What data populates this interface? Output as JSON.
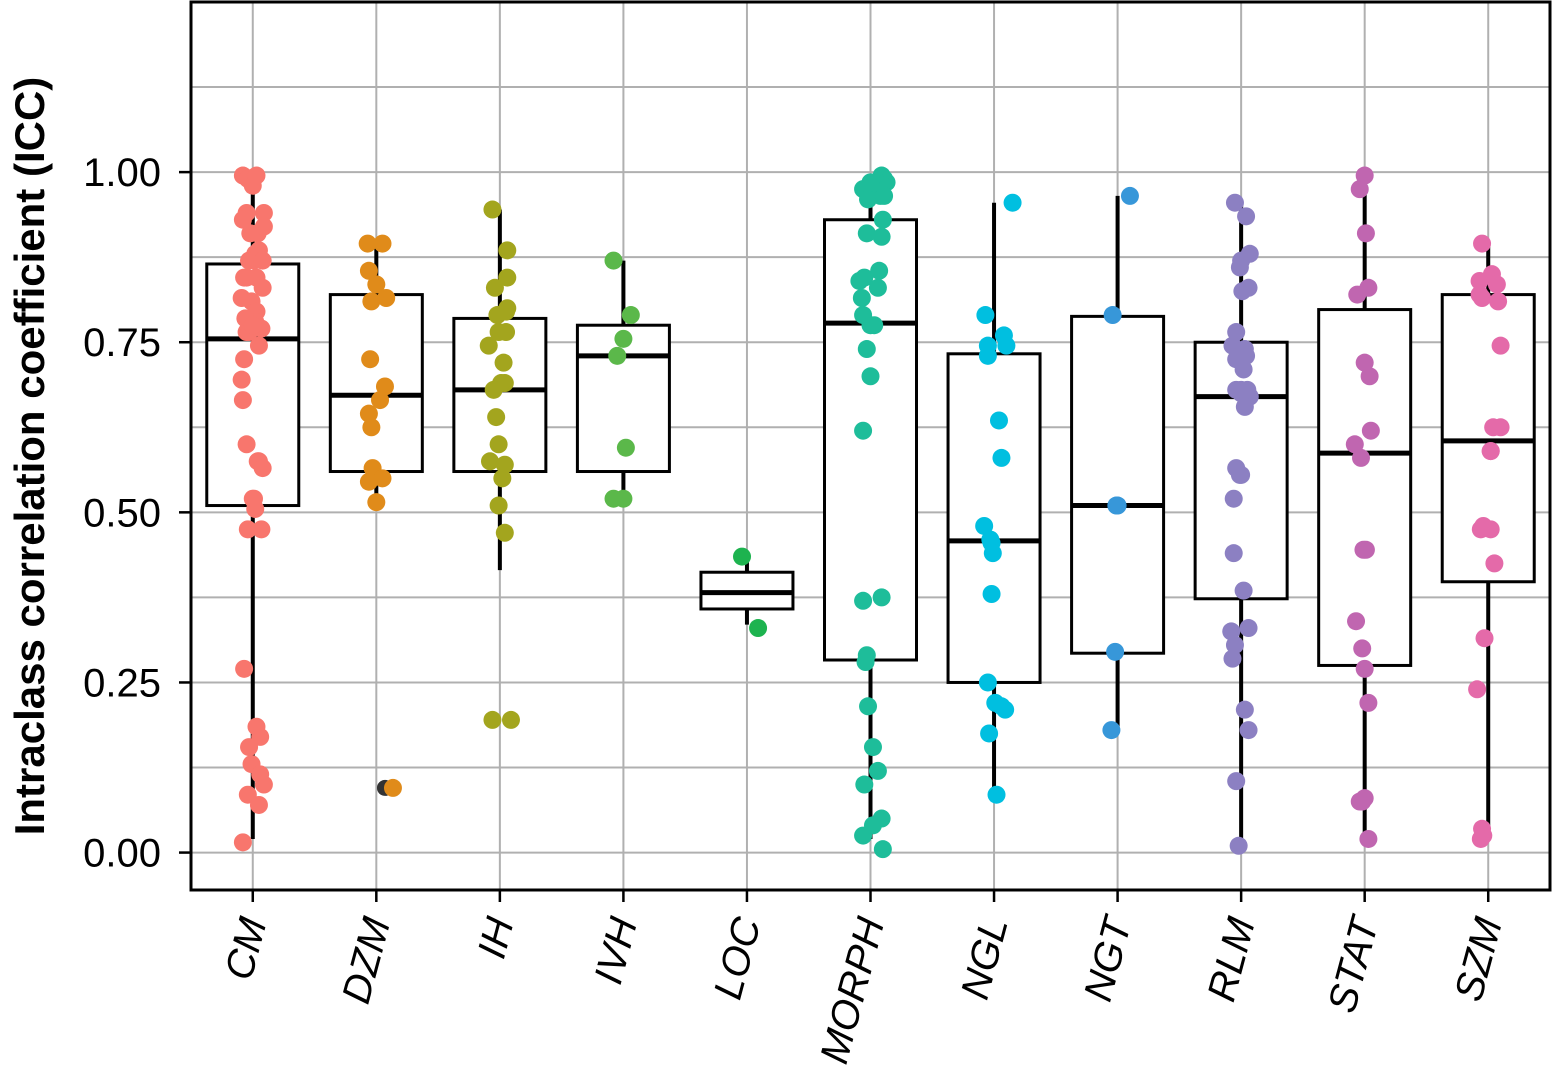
{
  "chart_data": {
    "type": "box",
    "title": "",
    "xlabel": "",
    "ylabel": "Intraclass correlation coefficient (ICC)",
    "ylim": [
      -0.055,
      1.25
    ],
    "yticks": [
      0.0,
      0.25,
      0.5,
      0.75,
      1.0
    ],
    "ytick_labels": [
      "0.00",
      "0.25",
      "0.50",
      "0.75",
      "1.00"
    ],
    "grid": true,
    "categories": [
      "CM",
      "DZM",
      "IH",
      "IVH",
      "LOC",
      "MORPH",
      "NGL",
      "NGT",
      "RLM",
      "STAT",
      "SZM"
    ],
    "colors": [
      "#f8766d",
      "#e08b1a",
      "#a3a51e",
      "#5bb84a",
      "#1db34f",
      "#1ebd9a",
      "#00bfe0",
      "#3797d9",
      "#8c80c2",
      "#c066b0",
      "#e46aa9"
    ],
    "boxes": [
      {
        "category": "CM",
        "whisker_low": 0.02,
        "q1": 0.51,
        "median": 0.755,
        "q3": 0.865,
        "whisker_high": 0.995
      },
      {
        "category": "DZM",
        "whisker_low": 0.515,
        "q1": 0.56,
        "median": 0.672,
        "q3": 0.82,
        "whisker_high": 0.895
      },
      {
        "category": "IH",
        "whisker_low": 0.415,
        "q1": 0.56,
        "median": 0.68,
        "q3": 0.785,
        "whisker_high": 0.945
      },
      {
        "category": "IVH",
        "whisker_low": 0.52,
        "q1": 0.56,
        "median": 0.73,
        "q3": 0.775,
        "whisker_high": 0.87
      },
      {
        "category": "LOC",
        "whisker_low": 0.335,
        "q1": 0.358,
        "median": 0.382,
        "q3": 0.412,
        "whisker_high": 0.435
      },
      {
        "category": "MORPH",
        "whisker_low": 0.02,
        "q1": 0.283,
        "median": 0.778,
        "q3": 0.93,
        "whisker_high": 0.995
      },
      {
        "category": "NGL",
        "whisker_low": 0.09,
        "q1": 0.25,
        "median": 0.458,
        "q3": 0.733,
        "whisker_high": 0.955
      },
      {
        "category": "NGT",
        "whisker_low": 0.18,
        "q1": 0.293,
        "median": 0.51,
        "q3": 0.788,
        "whisker_high": 0.965
      },
      {
        "category": "RLM",
        "whisker_low": 0.01,
        "q1": 0.373,
        "median": 0.67,
        "q3": 0.75,
        "whisker_high": 0.955
      },
      {
        "category": "STAT",
        "whisker_low": 0.015,
        "q1": 0.275,
        "median": 0.587,
        "q3": 0.798,
        "whisker_high": 0.995
      },
      {
        "category": "SZM",
        "whisker_low": 0.02,
        "q1": 0.398,
        "median": 0.605,
        "q3": 0.82,
        "whisker_high": 0.895
      }
    ],
    "points": [
      {
        "category": "CM",
        "x": [
          -0.08,
          -0.04,
          0.0,
          0.03,
          -0.05,
          0.09,
          -0.08,
          -0.02,
          0.04,
          0.02,
          0.09,
          -0.03,
          0.05,
          0.01,
          0.08,
          -0.07,
          -0.05,
          0.03,
          0.08,
          -0.01,
          -0.09,
          0.03,
          0.02,
          -0.06,
          -0.05,
          0.07,
          -0.03,
          0.0,
          0.05,
          -0.07,
          -0.09,
          -0.08,
          -0.05,
          0.05,
          0.04,
          0.08,
          0.0,
          0.02,
          0.07,
          -0.04,
          -0.07,
          0.03,
          0.06,
          -0.03,
          -0.01,
          0.06,
          0.09,
          -0.04,
          0.05,
          -0.08,
          0.01
        ],
        "y": [
          0.995,
          0.99,
          0.98,
          0.995,
          0.94,
          0.94,
          0.93,
          0.91,
          0.91,
          0.88,
          0.92,
          0.87,
          0.885,
          0.87,
          0.87,
          0.845,
          0.845,
          0.845,
          0.83,
          0.81,
          0.815,
          0.795,
          0.78,
          0.785,
          0.765,
          0.77,
          0.765,
          0.775,
          0.745,
          0.725,
          0.695,
          0.665,
          0.6,
          0.575,
          0.575,
          0.565,
          0.52,
          0.505,
          0.475,
          0.475,
          0.27,
          0.185,
          0.17,
          0.155,
          0.13,
          0.115,
          0.1,
          0.085,
          0.07,
          0.015,
          0.52
        ]
      },
      {
        "category": "DZM",
        "x": [
          -0.07,
          0.05,
          -0.06,
          0.0,
          -0.04,
          0.08,
          -0.05,
          0.07,
          0.03,
          -0.06,
          -0.04,
          -0.03,
          0.05,
          -0.06,
          0.0
        ],
        "y": [
          0.895,
          0.895,
          0.855,
          0.835,
          0.81,
          0.815,
          0.725,
          0.685,
          0.665,
          0.645,
          0.625,
          0.565,
          0.55,
          0.545,
          0.515
        ]
      },
      {
        "category": "IH",
        "x": [
          -0.06,
          0.06,
          0.06,
          -0.04,
          -0.09,
          0.06,
          0.05,
          -0.02,
          -0.01,
          0.05,
          0.03,
          0.04,
          0.01,
          -0.05,
          -0.03,
          -0.01,
          -0.08,
          0.04,
          0.02,
          -0.01,
          0.04,
          -0.06,
          0.09
        ],
        "y": [
          0.945,
          0.885,
          0.845,
          0.83,
          0.745,
          0.8,
          0.795,
          0.79,
          0.765,
          0.765,
          0.72,
          0.69,
          0.69,
          0.68,
          0.64,
          0.6,
          0.575,
          0.57,
          0.55,
          0.51,
          0.47,
          0.195,
          0.195
        ]
      },
      {
        "category": "IVH",
        "x": [
          -0.08,
          0.06,
          0.0,
          -0.05,
          0.02,
          0.0,
          -0.08
        ],
        "y": [
          0.87,
          0.79,
          0.755,
          0.73,
          0.595,
          0.52,
          0.52
        ]
      },
      {
        "category": "LOC",
        "x": [
          -0.04,
          0.09
        ],
        "y": [
          0.435,
          0.33
        ]
      },
      {
        "category": "MORPH",
        "x": [
          0.09,
          0.11,
          0.13,
          -0.06,
          0.1,
          0.07,
          -0.02,
          0.1,
          0.08,
          -0.03,
          0.09,
          0.07,
          -0.05,
          -0.07,
          -0.09,
          0.06,
          -0.06,
          0.0,
          0.03,
          -0.03,
          0.0,
          -0.06,
          0.09,
          -0.06,
          -0.03,
          -0.04,
          -0.02,
          0.02,
          0.06,
          -0.05,
          0.09,
          -0.06,
          0.1,
          0.0,
          0.11,
          0.02
        ],
        "y": [
          0.995,
          0.99,
          0.985,
          0.975,
          0.98,
          0.97,
          0.96,
          0.93,
          0.965,
          0.91,
          0.905,
          0.855,
          0.845,
          0.815,
          0.84,
          0.83,
          0.79,
          0.775,
          0.775,
          0.74,
          0.7,
          0.62,
          0.375,
          0.37,
          0.29,
          0.28,
          0.215,
          0.155,
          0.12,
          0.1,
          0.05,
          0.025,
          0.005,
          0.985,
          0.965,
          0.04
        ]
      },
      {
        "category": "NGL",
        "x": [
          0.15,
          -0.07,
          0.08,
          -0.05,
          0.1,
          -0.05,
          0.04,
          0.06,
          -0.08,
          -0.03,
          -0.02,
          -0.01,
          -0.02,
          -0.05,
          0.01,
          0.06,
          0.09,
          -0.04,
          0.02
        ],
        "y": [
          0.955,
          0.79,
          0.76,
          0.745,
          0.745,
          0.73,
          0.635,
          0.58,
          0.48,
          0.46,
          0.455,
          0.44,
          0.38,
          0.25,
          0.22,
          0.215,
          0.21,
          0.175,
          0.085
        ]
      },
      {
        "category": "NGT",
        "x": [
          0.1,
          -0.04,
          0.0,
          -0.02,
          -0.05,
          -0.01
        ],
        "y": [
          0.965,
          0.79,
          0.51,
          0.295,
          0.18,
          0.51
        ]
      },
      {
        "category": "RLM",
        "x": [
          -0.05,
          0.04,
          0.07,
          0.0,
          -0.01,
          0.06,
          0.01,
          -0.04,
          -0.07,
          0.03,
          0.0,
          -0.04,
          0.02,
          0.04,
          0.0,
          -0.04,
          0.07,
          0.0,
          0.05,
          0.03,
          -0.04,
          0.0,
          -0.06,
          0.02,
          0.06,
          -0.08,
          -0.05,
          -0.07,
          0.03,
          0.06,
          -0.04,
          -0.02,
          -0.01,
          -0.06
        ],
        "y": [
          0.955,
          0.935,
          0.88,
          0.87,
          0.86,
          0.83,
          0.825,
          0.765,
          0.745,
          0.74,
          0.735,
          0.725,
          0.71,
          0.73,
          0.68,
          0.68,
          0.67,
          0.675,
          0.68,
          0.655,
          0.565,
          0.555,
          0.44,
          0.385,
          0.33,
          0.325,
          0.305,
          0.285,
          0.21,
          0.18,
          0.105,
          0.01,
          0.555,
          0.52
        ]
      },
      {
        "category": "STAT",
        "x": [
          0.0,
          -0.04,
          0.01,
          -0.06,
          0.03,
          0.0,
          0.04,
          0.05,
          -0.08,
          -0.03,
          -0.01,
          0.01,
          -0.07,
          -0.02,
          0.0,
          0.03,
          0.0,
          -0.02,
          -0.04,
          0.03
        ],
        "y": [
          0.995,
          0.975,
          0.91,
          0.82,
          0.83,
          0.72,
          0.7,
          0.62,
          0.6,
          0.58,
          0.445,
          0.445,
          0.34,
          0.3,
          0.27,
          0.22,
          0.08,
          0.075,
          0.075,
          0.02
        ]
      },
      {
        "category": "SZM",
        "x": [
          -0.05,
          0.03,
          0.07,
          -0.07,
          -0.05,
          0.08,
          0.1,
          0.1,
          0.04,
          0.02,
          -0.04,
          0.02,
          -0.06,
          0.05,
          -0.03,
          -0.09,
          -0.05,
          -0.04,
          -0.06,
          -0.07,
          0.02
        ],
        "y": [
          0.895,
          0.85,
          0.835,
          0.84,
          0.815,
          0.81,
          0.745,
          0.625,
          0.625,
          0.59,
          0.48,
          0.475,
          0.475,
          0.425,
          0.315,
          0.24,
          0.035,
          0.025,
          0.02,
          0.82,
          0.59
        ]
      }
    ],
    "outliers": [
      {
        "category": "DZM",
        "x": 0.07,
        "y": 0.095,
        "color": "#333333"
      }
    ]
  }
}
